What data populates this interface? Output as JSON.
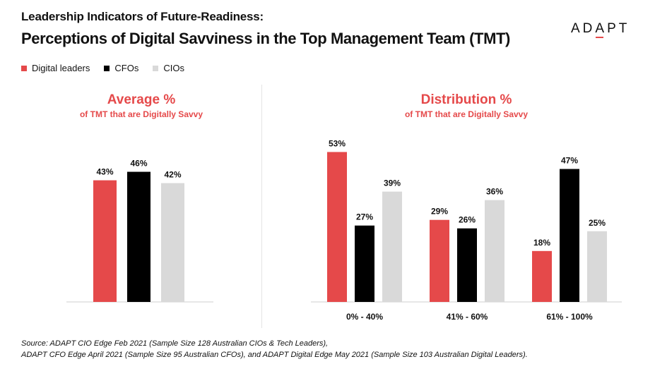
{
  "header": {
    "title_line1": "Leadership Indicators of Future-Readiness:",
    "title_line2": "Perceptions of Digital Savviness in the Top Management Team (TMT)"
  },
  "logo": {
    "pre": "AD",
    "mark": "A",
    "post": "PT"
  },
  "colors": {
    "digital_leaders": "#e5494a",
    "cfos": "#000000",
    "cios": "#d9d9d9",
    "accent": "#e5494a"
  },
  "legend": [
    {
      "label": "Digital leaders",
      "color": "#e5494a"
    },
    {
      "label": "CFOs",
      "color": "#000000"
    },
    {
      "label": "CIOs",
      "color": "#d9d9d9"
    }
  ],
  "left_panel": {
    "title": "Average %",
    "subtitle": "of TMT that are Digitally Savvy"
  },
  "right_panel": {
    "title": "Distribution %",
    "subtitle": "of TMT that are Digitally Savvy"
  },
  "chart_data": [
    {
      "type": "bar",
      "title": "Average %",
      "subtitle": "of TMT that are Digitally Savvy",
      "categories": [
        ""
      ],
      "series": [
        {
          "name": "Digital leaders",
          "values": [
            43
          ],
          "labels": [
            "43%"
          ]
        },
        {
          "name": "CFOs",
          "values": [
            46
          ],
          "labels": [
            "46%"
          ]
        },
        {
          "name": "CIOs",
          "values": [
            42
          ],
          "labels": [
            "42%"
          ]
        }
      ],
      "ylim": [
        0,
        100
      ],
      "grid": false
    },
    {
      "type": "bar",
      "title": "Distribution %",
      "subtitle": "of TMT that are Digitally Savvy",
      "categories": [
        "0% - 40%",
        "41% - 60%",
        "61% - 100%"
      ],
      "series": [
        {
          "name": "Digital leaders",
          "values": [
            53,
            29,
            18
          ],
          "labels": [
            "53%",
            "29%",
            "18%"
          ]
        },
        {
          "name": "CFOs",
          "values": [
            27,
            26,
            47
          ],
          "labels": [
            "27%",
            "26%",
            "47%"
          ]
        },
        {
          "name": "CIOs",
          "values": [
            39,
            36,
            25
          ],
          "labels": [
            "39%",
            "36%",
            "25%"
          ]
        }
      ],
      "ylim": [
        0,
        100
      ],
      "grid": false
    }
  ],
  "source": {
    "line1": "Source: ADAPT CIO Edge Feb 2021 (Sample Size 128 Australian CIOs & Tech Leaders),",
    "line2": "ADAPT CFO Edge April 2021 (Sample Size 95 Australian CFOs), and ADAPT Digital Edge May 2021 (Sample Size 103 Australian Digital Leaders)."
  }
}
